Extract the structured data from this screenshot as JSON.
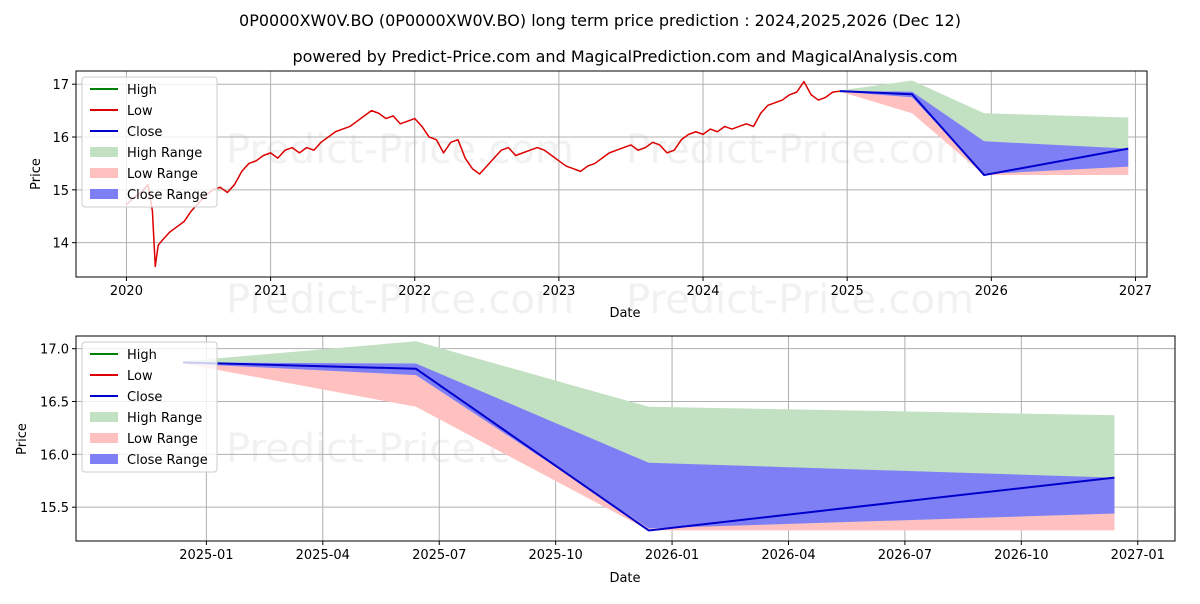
{
  "title": "0P0000XW0V.BO (0P0000XW0V.BO) long term price prediction : 2024,2025,2026 (Dec 12)",
  "subtitle": "powered by Predict-Price.com and MagicalPrediction.com and MagicalAnalysis.com",
  "watermark": "Predict-Price.com",
  "colors": {
    "high": "#008000",
    "low": "#dd0000",
    "close": "#0000cc",
    "high_range": "#c2e0c2",
    "low_range": "#ffc0c0",
    "close_range": "#7f7ff5",
    "grid": "#b0b0b0"
  },
  "chart_data": [
    {
      "type": "line",
      "xlabel": "Date",
      "ylabel": "Price",
      "xlim": [
        2019.65,
        2027.08
      ],
      "ylim": [
        13.35,
        17.25
      ],
      "x_ticks": [
        2020,
        2021,
        2022,
        2023,
        2024,
        2025,
        2026,
        2027
      ],
      "x_tick_labels": [
        "2020",
        "2021",
        "2022",
        "2023",
        "2024",
        "2025",
        "2026",
        "2027"
      ],
      "y_ticks": [
        14,
        15,
        16,
        17
      ],
      "y_tick_labels": [
        "14",
        "15",
        "16",
        "17"
      ],
      "legend": [
        "High",
        "Low",
        "Close",
        "High Range",
        "Low Range",
        "Close Range"
      ],
      "legend_position": "upper-left",
      "historical_low_series": {
        "name": "Low",
        "x": [
          2020.0,
          2020.05,
          2020.1,
          2020.15,
          2020.18,
          2020.2,
          2020.22,
          2020.25,
          2020.3,
          2020.35,
          2020.4,
          2020.45,
          2020.5,
          2020.55,
          2020.6,
          2020.65,
          2020.7,
          2020.75,
          2020.8,
          2020.85,
          2020.9,
          2020.95,
          2021.0,
          2021.05,
          2021.1,
          2021.15,
          2021.2,
          2021.25,
          2021.3,
          2021.35,
          2021.4,
          2021.45,
          2021.5,
          2021.55,
          2021.6,
          2021.65,
          2021.7,
          2021.75,
          2021.8,
          2021.85,
          2021.9,
          2021.95,
          2022.0,
          2022.05,
          2022.1,
          2022.15,
          2022.2,
          2022.25,
          2022.3,
          2022.35,
          2022.4,
          2022.45,
          2022.5,
          2022.55,
          2022.6,
          2022.65,
          2022.7,
          2022.75,
          2022.8,
          2022.85,
          2022.9,
          2022.95,
          2023.0,
          2023.05,
          2023.1,
          2023.15,
          2023.2,
          2023.25,
          2023.3,
          2023.35,
          2023.4,
          2023.45,
          2023.5,
          2023.55,
          2023.6,
          2023.65,
          2023.7,
          2023.75,
          2023.8,
          2023.85,
          2023.9,
          2023.95,
          2024.0,
          2024.05,
          2024.1,
          2024.15,
          2024.2,
          2024.25,
          2024.3,
          2024.35,
          2024.4,
          2024.45,
          2024.5,
          2024.55,
          2024.6,
          2024.65,
          2024.7,
          2024.75,
          2024.8,
          2024.85,
          2024.9,
          2024.95
        ],
        "y": [
          14.72,
          14.85,
          14.95,
          15.1,
          14.6,
          13.55,
          13.95,
          14.05,
          14.2,
          14.3,
          14.4,
          14.6,
          14.75,
          14.9,
          15.0,
          15.05,
          14.95,
          15.1,
          15.35,
          15.5,
          15.55,
          15.65,
          15.7,
          15.6,
          15.75,
          15.8,
          15.7,
          15.8,
          15.75,
          15.9,
          16.0,
          16.1,
          16.15,
          16.2,
          16.3,
          16.4,
          16.5,
          16.45,
          16.35,
          16.4,
          16.25,
          16.3,
          16.35,
          16.2,
          16.0,
          15.95,
          15.7,
          15.9,
          15.95,
          15.6,
          15.4,
          15.3,
          15.45,
          15.6,
          15.75,
          15.8,
          15.65,
          15.7,
          15.75,
          15.8,
          15.75,
          15.65,
          15.55,
          15.45,
          15.4,
          15.35,
          15.45,
          15.5,
          15.6,
          15.7,
          15.75,
          15.8,
          15.85,
          15.75,
          15.8,
          15.9,
          15.85,
          15.7,
          15.75,
          15.95,
          16.05,
          16.1,
          16.05,
          16.15,
          16.1,
          16.2,
          16.15,
          16.2,
          16.25,
          16.2,
          16.45,
          16.6,
          16.65,
          16.7,
          16.8,
          16.85,
          17.05,
          16.8,
          16.7,
          16.75,
          16.85,
          16.87
        ]
      },
      "prediction": {
        "x": [
          2024.95,
          2025.45,
          2025.95,
          2026.95
        ],
        "close": [
          16.87,
          16.81,
          15.28,
          15.78
        ],
        "high_range": {
          "upper": [
            16.88,
            17.07,
            16.45,
            16.37
          ],
          "lower": [
            16.87,
            16.86,
            15.3,
            15.3
          ]
        },
        "low_range": {
          "upper": [
            16.87,
            16.75,
            15.3,
            15.44
          ],
          "lower": [
            16.86,
            16.45,
            15.28,
            15.28
          ]
        },
        "close_range": {
          "upper": [
            16.87,
            16.86,
            15.92,
            15.78
          ],
          "lower": [
            16.86,
            16.75,
            15.3,
            15.44
          ]
        }
      }
    },
    {
      "type": "line",
      "xlabel": "Date",
      "ylabel": "Price",
      "xlim": [
        2024.72,
        2027.08
      ],
      "ylim": [
        15.18,
        17.12
      ],
      "x_ticks": [
        2025.0,
        2025.25,
        2025.5,
        2025.75,
        2026.0,
        2026.25,
        2026.5,
        2026.75,
        2027.0
      ],
      "x_tick_labels": [
        "2025-01",
        "2025-04",
        "2025-07",
        "2025-10",
        "2026-01",
        "2026-04",
        "2026-07",
        "2026-10",
        "2027-01"
      ],
      "y_ticks": [
        15.5,
        16.0,
        16.5,
        17.0
      ],
      "y_tick_labels": [
        "15.5",
        "16.0",
        "16.5",
        "17.0"
      ],
      "legend": [
        "High",
        "Low",
        "Close",
        "High Range",
        "Low Range",
        "Close Range"
      ],
      "legend_position": "upper-left",
      "prediction": {
        "x": [
          2024.95,
          2025.45,
          2025.95,
          2026.95
        ],
        "close": [
          16.87,
          16.81,
          15.28,
          15.78
        ],
        "high_range": {
          "upper": [
            16.88,
            17.07,
            16.45,
            16.37
          ],
          "lower": [
            16.87,
            16.86,
            15.3,
            15.3
          ]
        },
        "low_range": {
          "upper": [
            16.87,
            16.75,
            15.3,
            15.44
          ],
          "lower": [
            16.86,
            16.45,
            15.28,
            15.28
          ]
        },
        "close_range": {
          "upper": [
            16.87,
            16.86,
            15.92,
            15.78
          ],
          "lower": [
            16.86,
            16.75,
            15.3,
            15.44
          ]
        }
      }
    }
  ]
}
